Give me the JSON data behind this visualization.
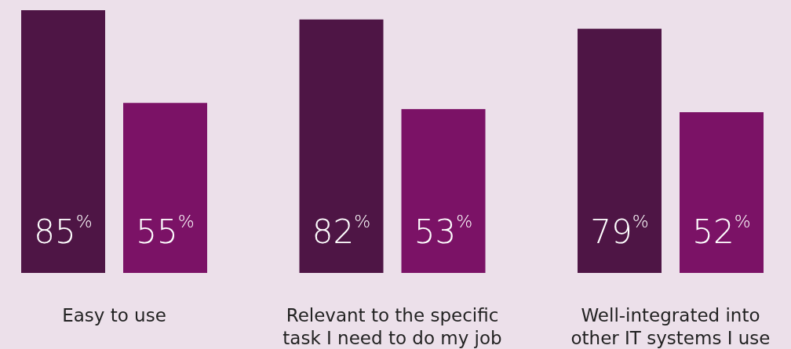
{
  "chart_data": {
    "type": "bar",
    "categories": [
      "Easy to use",
      "Relevant to the specific task I need to do my job",
      "Well-integrated into other IT systems I use"
    ],
    "series": [
      {
        "color": "#4e1545",
        "values": [
          85,
          82,
          79
        ],
        "value_labels": [
          "85$^{%}$",
          "82$^{%}$",
          "79$^{%}$"
        ]
      },
      {
        "color": "#7b1266",
        "values": [
          55,
          53,
          52
        ],
        "value_labels": [
          "55$^{%}$",
          "53$^{%}$",
          "52$^{%}$"
        ]
      }
    ],
    "tick_labels": "x"
  }
}
